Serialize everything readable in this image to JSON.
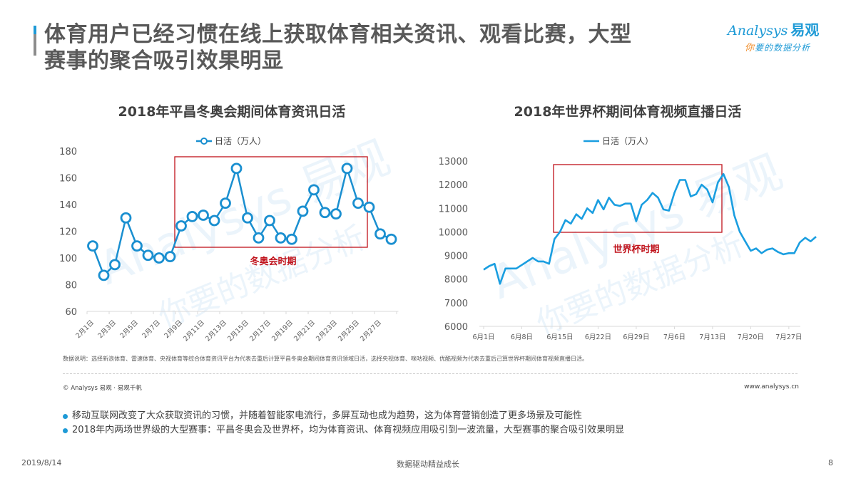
{
  "header": {
    "title_line1": "体育用户已经习惯在线上获取体育相关资讯、观看比赛，大型",
    "title_line2": "赛事的聚合吸引效果明显",
    "accent_color": "#1e9ad6"
  },
  "logo": {
    "brand_en": "Analysys",
    "brand_cn": "易观",
    "slogan_first": "你",
    "slogan_rest": "要的数据分析"
  },
  "watermark": {
    "brand": "Analysys 易观",
    "slogan": "你要的数据分析"
  },
  "chart_data": [
    {
      "type": "line",
      "title": "2018年平昌冬奥会期间体育资讯日活",
      "legend": [
        "日活（万人）"
      ],
      "legend_position": "top",
      "marker": "circle",
      "xlabel": "",
      "ylabel": "",
      "ylim": [
        60,
        180
      ],
      "yticks": [
        60,
        80,
        100,
        120,
        140,
        160,
        180
      ],
      "grid": false,
      "categories": [
        "2月1日",
        "2月2日",
        "2月3日",
        "2月4日",
        "2月5日",
        "2月6日",
        "2月7日",
        "2月8日",
        "2月9日",
        "2月10日",
        "2月11日",
        "2月12日",
        "2月13日",
        "2月14日",
        "2月15日",
        "2月16日",
        "2月17日",
        "2月18日",
        "2月19日",
        "2月20日",
        "2月21日",
        "2月22日",
        "2月23日",
        "2月24日",
        "2月25日",
        "2月26日",
        "2月27日",
        "2月28日"
      ],
      "xtick_labels": [
        "2月1日",
        "2月3日",
        "2月5日",
        "2月7日",
        "2月9日",
        "2月11日",
        "2月13日",
        "2月15日",
        "2月17日",
        "2月19日",
        "2月21日",
        "2月23日",
        "2月25日",
        "2月27日"
      ],
      "series": [
        {
          "name": "日活（万人）",
          "color": "#1a8fd0",
          "values": [
            109,
            87,
            95,
            130,
            109,
            102,
            100,
            101,
            124,
            131,
            132,
            128,
            141,
            167,
            130,
            115,
            128,
            115,
            114,
            135,
            151,
            134,
            133,
            167,
            141,
            138,
            118,
            114
          ]
        }
      ],
      "annotation": {
        "label": "冬奥会时期",
        "box_from": "2月8日",
        "box_to": "2月25日",
        "color": "#c0121b"
      }
    },
    {
      "type": "line",
      "title": "2018年世界杯期间体育视频直播日活",
      "legend": [
        "日活（万人）"
      ],
      "legend_position": "top",
      "marker": "none",
      "xlabel": "",
      "ylabel": "",
      "ylim": [
        6000,
        13000
      ],
      "yticks": [
        6000,
        7000,
        8000,
        9000,
        10000,
        11000,
        12000,
        13000
      ],
      "grid": false,
      "x_start": "6月1日",
      "xtick_labels": [
        "6月1日",
        "6月8日",
        "6月15日",
        "6月22日",
        "6月29日",
        "7月6日",
        "7月13日",
        "7月20日",
        "7月27日"
      ],
      "series": [
        {
          "name": "日活（万人）",
          "color": "#1a9ee0",
          "values": [
            8400,
            8550,
            8650,
            7800,
            8450,
            8450,
            8450,
            8600,
            8750,
            8900,
            8750,
            8750,
            8650,
            9700,
            10000,
            10500,
            10350,
            10750,
            10550,
            11000,
            10800,
            11350,
            10950,
            11450,
            11150,
            11100,
            11200,
            11200,
            10450,
            11150,
            11350,
            11650,
            11450,
            10950,
            10900,
            11650,
            12200,
            12200,
            11500,
            11600,
            12000,
            11800,
            11250,
            12100,
            12450,
            11900,
            10700,
            10000,
            9600,
            9200,
            9300,
            9100,
            9250,
            9300,
            9150,
            9050,
            9100,
            9100,
            9550,
            9750,
            9600,
            9800
          ]
        }
      ],
      "annotation": {
        "label": "世界杯时期",
        "box_from": "6月14日",
        "box_to": "7月15日",
        "color": "#c0121b"
      }
    }
  ],
  "notes": {
    "data_note": "数据说明：选择新浪体育、雷速体育、央视体育等综合体育资讯平台为代表去重后计算平昌冬奥会期间体育资讯领域日活，选择央视体育、咪咕视频、优酷视频为代表去重后己算世界杯期间体育视频直播日活。",
    "copyright": "© Analysys 易观 · 易观千帆",
    "website": "www.analysys.cn"
  },
  "bullets": [
    "移动互联网改变了大众获取资讯的习惯，并随着智能家电流行，多屏互动也成为趋势，这为体育营销创造了更多场景及可能性",
    "2018年内两场世界级的大型赛事：平昌冬奥会及世界杯，均为体育资讯、体育视频应用吸引到一波流量，大型赛事的聚合吸引效果明显"
  ],
  "footer": {
    "date": "2019/8/14",
    "slogan": "数据驱动精益成长",
    "page": "8"
  }
}
